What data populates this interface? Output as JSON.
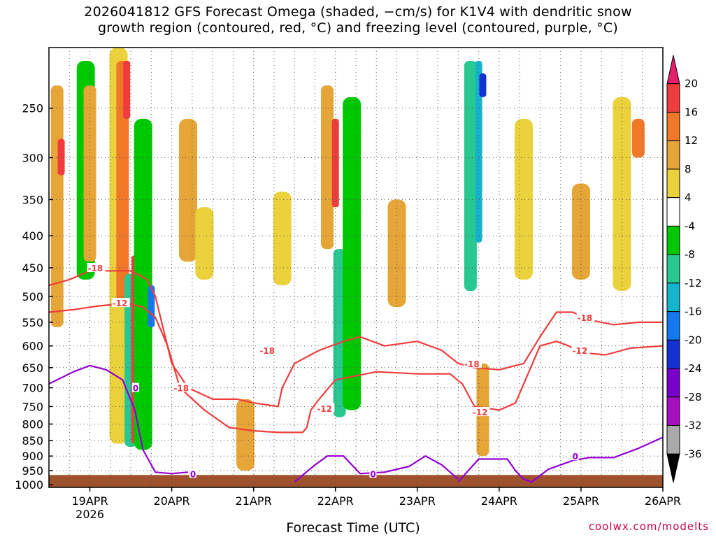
{
  "chart_data": {
    "type": "heatmap",
    "title_line1": "2026041812 GFS Forecast Omega (shaded, −cm/s) for K1V4 with dendritic snow",
    "title_line2": "growth region (contoured, red, °C) and freezing level (contoured, purple, °C)",
    "xlabel": "Forecast Time (UTC)",
    "credit": "coolwx.com/modelts",
    "x_tick_labels": [
      "19APR",
      "20APR",
      "21APR",
      "22APR",
      "23APR",
      "24APR",
      "25APR",
      "26APR"
    ],
    "x_year_label": "2026",
    "x_range_days": [
      18.5,
      26.0
    ],
    "y_tick_labels": [
      "250",
      "300",
      "350",
      "400",
      "450",
      "500",
      "550",
      "600",
      "650",
      "700",
      "750",
      "800",
      "850",
      "900",
      "950",
      "1000"
    ],
    "y_range_hpa": [
      200,
      1010
    ],
    "y_scale": "log-pressure",
    "grid": true,
    "colorbar_labels": [
      "20",
      "16",
      "12",
      "8",
      "4",
      "-4",
      "-8",
      "-12",
      "-16",
      "-20",
      "-24",
      "-28",
      "-32",
      "-36"
    ],
    "colorbar_colors": [
      "#e61e6e",
      "#f03c3c",
      "#f07828",
      "#e6a537",
      "#ebd23c",
      "#ffffff",
      "#00c800",
      "#28c890",
      "#14b4cd",
      "#1478f0",
      "#1432d2",
      "#7800c8",
      "#a50fbe",
      "#aaaaaa",
      "#000000"
    ],
    "omega_regions": [
      {
        "day": 18.6,
        "p_top": 230,
        "p_bot": 560,
        "value": 10
      },
      {
        "day": 18.65,
        "p_top": 280,
        "p_bot": 320,
        "value": 18
      },
      {
        "day": 18.95,
        "p_top": 210,
        "p_bot": 470,
        "value": -6
      },
      {
        "day": 19.0,
        "p_top": 230,
        "p_bot": 440,
        "value": 10
      },
      {
        "day": 19.35,
        "p_top": 200,
        "p_bot": 860,
        "value": 6
      },
      {
        "day": 19.4,
        "p_top": 210,
        "p_bot": 520,
        "value": 12
      },
      {
        "day": 19.45,
        "p_top": 210,
        "p_bot": 260,
        "value": 18
      },
      {
        "day": 19.5,
        "p_top": 460,
        "p_bot": 870,
        "value": -10
      },
      {
        "day": 19.55,
        "p_top": 430,
        "p_bot": 860,
        "value": 18
      },
      {
        "day": 19.65,
        "p_top": 260,
        "p_bot": 880,
        "value": -8
      },
      {
        "day": 19.75,
        "p_top": 480,
        "p_bot": 560,
        "value": -18
      },
      {
        "day": 20.2,
        "p_top": 260,
        "p_bot": 440,
        "value": 8
      },
      {
        "day": 20.4,
        "p_top": 360,
        "p_bot": 470,
        "value": 6
      },
      {
        "day": 20.9,
        "p_top": 730,
        "p_bot": 950,
        "value": 8
      },
      {
        "day": 21.35,
        "p_top": 340,
        "p_bot": 480,
        "value": 4
      },
      {
        "day": 21.9,
        "p_top": 230,
        "p_bot": 420,
        "value": 10
      },
      {
        "day": 22.0,
        "p_top": 260,
        "p_bot": 360,
        "value": 18
      },
      {
        "day": 22.05,
        "p_top": 420,
        "p_bot": 780,
        "value": -10
      },
      {
        "day": 22.2,
        "p_top": 240,
        "p_bot": 760,
        "value": -7
      },
      {
        "day": 22.75,
        "p_top": 350,
        "p_bot": 520,
        "value": 8
      },
      {
        "day": 23.65,
        "p_top": 210,
        "p_bot": 490,
        "value": -10
      },
      {
        "day": 23.75,
        "p_top": 210,
        "p_bot": 410,
        "value": -16
      },
      {
        "day": 23.8,
        "p_top": 220,
        "p_bot": 240,
        "value": -22
      },
      {
        "day": 23.8,
        "p_top": 640,
        "p_bot": 900,
        "value": 10
      },
      {
        "day": 24.3,
        "p_top": 260,
        "p_bot": 470,
        "value": 4
      },
      {
        "day": 25.0,
        "p_top": 330,
        "p_bot": 470,
        "value": 8
      },
      {
        "day": 25.5,
        "p_top": 240,
        "p_bot": 490,
        "value": 6
      },
      {
        "day": 25.7,
        "p_top": 260,
        "p_bot": 300,
        "value": 12
      }
    ],
    "dendritic_minus12_line": [
      [
        18.5,
        530
      ],
      [
        18.8,
        525
      ],
      [
        19.1,
        518
      ],
      [
        19.3,
        515
      ],
      [
        19.5,
        515
      ],
      [
        19.65,
        520
      ],
      [
        19.8,
        540
      ],
      [
        19.95,
        600
      ],
      [
        20.1,
        700
      ],
      [
        20.4,
        760
      ],
      [
        20.7,
        810
      ],
      [
        21.0,
        820
      ],
      [
        21.3,
        825
      ],
      [
        21.6,
        825
      ],
      [
        21.65,
        810
      ],
      [
        21.7,
        760
      ],
      [
        21.8,
        730
      ],
      [
        22.0,
        680
      ],
      [
        22.5,
        660
      ],
      [
        23.0,
        665
      ],
      [
        23.4,
        665
      ],
      [
        23.55,
        690
      ],
      [
        23.7,
        750
      ],
      [
        24.0,
        760
      ],
      [
        24.2,
        740
      ],
      [
        24.5,
        600
      ],
      [
        24.7,
        590
      ],
      [
        24.85,
        600
      ],
      [
        25.0,
        615
      ],
      [
        25.3,
        620
      ],
      [
        25.6,
        605
      ],
      [
        26.0,
        600
      ]
    ],
    "dendritic_minus18_line": [
      [
        18.5,
        480
      ],
      [
        18.75,
        470
      ],
      [
        19.0,
        455
      ],
      [
        19.3,
        455
      ],
      [
        19.5,
        455
      ],
      [
        19.7,
        470
      ],
      [
        19.8,
        500
      ],
      [
        20.0,
        640
      ],
      [
        20.2,
        700
      ],
      [
        20.5,
        730
      ],
      [
        20.8,
        730
      ],
      [
        21.0,
        740
      ],
      [
        21.3,
        750
      ],
      [
        21.35,
        700
      ],
      [
        21.5,
        640
      ],
      [
        21.8,
        610
      ],
      [
        22.1,
        590
      ],
      [
        22.3,
        580
      ],
      [
        22.6,
        600
      ],
      [
        23.0,
        590
      ],
      [
        23.3,
        610
      ],
      [
        23.5,
        640
      ],
      [
        23.7,
        650
      ],
      [
        24.0,
        655
      ],
      [
        24.3,
        640
      ],
      [
        24.5,
        580
      ],
      [
        24.7,
        530
      ],
      [
        24.9,
        530
      ],
      [
        25.1,
        545
      ],
      [
        25.4,
        555
      ],
      [
        25.7,
        550
      ],
      [
        26.0,
        550
      ]
    ],
    "freezing_level_line": [
      [
        18.5,
        690
      ],
      [
        18.8,
        660
      ],
      [
        19.0,
        645
      ],
      [
        19.2,
        655
      ],
      [
        19.4,
        680
      ],
      [
        19.55,
        760
      ],
      [
        19.65,
        880
      ],
      [
        19.8,
        955
      ],
      [
        20.0,
        960
      ],
      [
        20.2,
        955
      ]
    ],
    "freezing_level_line_b": [
      [
        21.5,
        990
      ],
      [
        21.75,
        930
      ],
      [
        21.9,
        900
      ],
      [
        22.1,
        900
      ],
      [
        22.3,
        960
      ],
      [
        22.6,
        955
      ],
      [
        22.9,
        935
      ],
      [
        23.1,
        900
      ],
      [
        23.3,
        930
      ],
      [
        23.5,
        980
      ]
    ],
    "freezing_level_line_c": [
      [
        23.5,
        990
      ],
      [
        23.75,
        910
      ],
      [
        24.1,
        910
      ],
      [
        24.2,
        950
      ],
      [
        24.3,
        980
      ],
      [
        24.4,
        990
      ],
      [
        24.6,
        945
      ],
      [
        24.9,
        915
      ],
      [
        25.1,
        905
      ],
      [
        25.4,
        905
      ],
      [
        25.7,
        875
      ],
      [
        26.0,
        840
      ]
    ],
    "contour_labels": [
      {
        "text": "-18",
        "day": 19.0,
        "p": 450,
        "color": "#f03c3c"
      },
      {
        "text": "-12",
        "day": 19.3,
        "p": 512,
        "color": "#f03c3c"
      },
      {
        "text": "-18",
        "day": 20.05,
        "p": 700,
        "color": "#f03c3c"
      },
      {
        "text": "-18",
        "day": 21.1,
        "p": 610,
        "color": "#f03c3c"
      },
      {
        "text": "-12",
        "day": 21.8,
        "p": 755,
        "color": "#f03c3c"
      },
      {
        "text": "-18",
        "day": 23.6,
        "p": 640,
        "color": "#f03c3c"
      },
      {
        "text": "-12",
        "day": 23.7,
        "p": 765,
        "color": "#f03c3c"
      },
      {
        "text": "-18",
        "day": 24.98,
        "p": 540,
        "color": "#f03c3c"
      },
      {
        "text": "-12",
        "day": 24.92,
        "p": 610,
        "color": "#f03c3c"
      },
      {
        "text": "0",
        "day": 19.55,
        "p": 700,
        "color": "#9400d3"
      },
      {
        "text": "0",
        "day": 20.25,
        "p": 960,
        "color": "#9400d3"
      },
      {
        "text": "0",
        "day": 22.45,
        "p": 960,
        "color": "#9400d3"
      },
      {
        "text": "0",
        "day": 24.92,
        "p": 900,
        "color": "#9400d3"
      }
    ],
    "ground_color": "#a0522d"
  }
}
